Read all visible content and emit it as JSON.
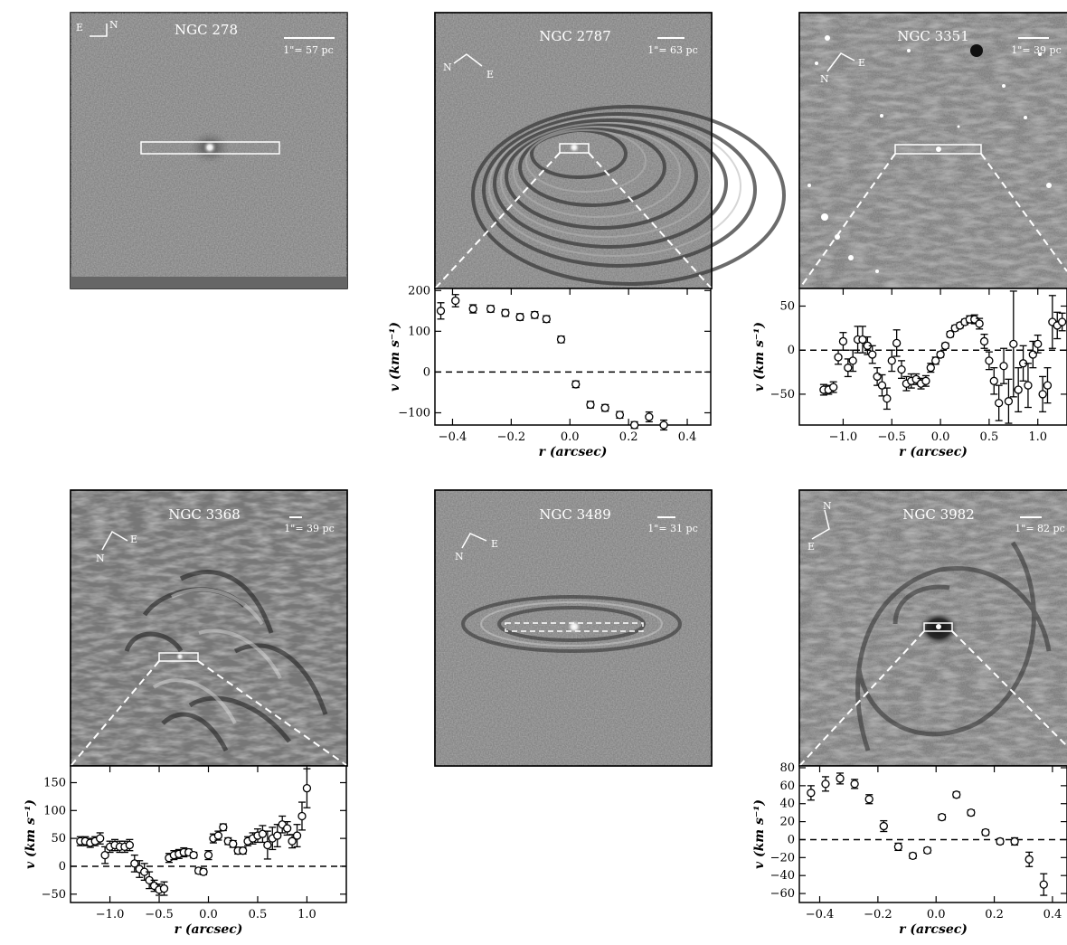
{
  "figure": {
    "panels": [
      {
        "galaxy": "NGC 278",
        "scale_label": "1\"= 57 pc",
        "compass": [
          "N",
          "E"
        ]
      },
      {
        "galaxy": "NGC 2787",
        "scale_label": "1\"= 63 pc",
        "compass": [
          "N",
          "E"
        ]
      },
      {
        "galaxy": "NGC 3351",
        "scale_label": "1\"= 39 pc",
        "compass": [
          "N",
          "E"
        ]
      },
      {
        "galaxy": "NGC 3368",
        "scale_label": "1\"= 39 pc",
        "compass": [
          "N",
          "E"
        ]
      },
      {
        "galaxy": "NGC 3489",
        "scale_label": "1\"= 31 pc",
        "compass": [
          "N",
          "E"
        ]
      },
      {
        "galaxy": "NGC 3982",
        "scale_label": "1\"= 82 pc",
        "compass": [
          "N",
          "E"
        ]
      }
    ]
  },
  "chart_data": [
    {
      "type": "scatter",
      "galaxy": "NGC 2787",
      "xlabel": "r (arcsec)",
      "ylabel": "v (km s⁻¹)",
      "xlim": [
        -0.46,
        0.48
      ],
      "ylim": [
        -130,
        205
      ],
      "xticks": [
        -0.4,
        -0.2,
        0.0,
        0.2,
        0.4
      ],
      "xtick_labels": [
        "−0.4",
        "−0.2",
        "0.0",
        "0.2",
        "0.4"
      ],
      "yticks": [
        -100,
        0,
        100,
        200
      ],
      "ytick_labels": [
        "−100",
        "0",
        "100",
        "200"
      ],
      "reference_line": 0,
      "x": [
        -0.44,
        -0.39,
        -0.33,
        -0.27,
        -0.22,
        -0.17,
        -0.12,
        -0.08,
        -0.03,
        0.02,
        0.07,
        0.12,
        0.17,
        0.22,
        0.27,
        0.32
      ],
      "y": [
        150,
        175,
        155,
        155,
        145,
        135,
        140,
        130,
        80,
        -30,
        -80,
        -88,
        -105,
        -130,
        -110,
        -130
      ],
      "yerr": [
        20,
        15,
        10,
        8,
        8,
        8,
        8,
        8,
        8,
        8,
        8,
        8,
        8,
        8,
        12,
        12
      ]
    },
    {
      "type": "scatter",
      "galaxy": "NGC 3351",
      "xlabel": "r (arcsec)",
      "ylabel": "v (km s⁻¹)",
      "xlim": [
        -1.45,
        1.3
      ],
      "ylim": [
        -85,
        70
      ],
      "xticks": [
        -1.0,
        -0.5,
        0.0,
        0.5,
        1.0
      ],
      "xtick_labels": [
        "−1.0",
        "−0.5",
        "0.0",
        "0.5",
        "1.0"
      ],
      "yticks": [
        -50,
        0,
        50
      ],
      "ytick_labels": [
        "−50",
        "0",
        "50"
      ],
      "reference_line": 0,
      "x": [
        -1.2,
        -1.15,
        -1.1,
        -1.05,
        -1.0,
        -0.95,
        -0.9,
        -0.85,
        -0.8,
        -0.75,
        -0.7,
        -0.65,
        -0.6,
        -0.55,
        -0.5,
        -0.45,
        -0.4,
        -0.35,
        -0.3,
        -0.25,
        -0.2,
        -0.15,
        -0.1,
        -0.05,
        0.0,
        0.05,
        0.1,
        0.15,
        0.2,
        0.25,
        0.3,
        0.35,
        0.4,
        0.45,
        0.5,
        0.55,
        0.6,
        0.65,
        0.7,
        0.75,
        0.8,
        0.85,
        0.9,
        0.95,
        1.0,
        1.05,
        1.1,
        1.15,
        1.2,
        1.25
      ],
      "y": [
        -45,
        -45,
        -42,
        -8,
        10,
        -20,
        -12,
        12,
        12,
        5,
        -5,
        -30,
        -40,
        -55,
        -12,
        8,
        -22,
        -38,
        -35,
        -33,
        -38,
        -35,
        -20,
        -12,
        -5,
        5,
        18,
        25,
        28,
        32,
        35,
        35,
        30,
        10,
        -12,
        -35,
        -60,
        -18,
        -58,
        7,
        -45,
        -15,
        -40,
        -5,
        7,
        -50,
        -40,
        32,
        28,
        32
      ],
      "yerr": [
        6,
        5,
        6,
        8,
        10,
        10,
        12,
        15,
        15,
        10,
        10,
        10,
        12,
        12,
        12,
        15,
        10,
        8,
        8,
        6,
        6,
        6,
        5,
        4,
        3,
        3,
        3,
        3,
        3,
        3,
        4,
        5,
        6,
        8,
        10,
        15,
        20,
        20,
        25,
        60,
        25,
        20,
        25,
        15,
        10,
        20,
        20,
        30,
        15,
        10
      ]
    },
    {
      "type": "scatter",
      "galaxy": "NGC 3368",
      "xlabel": "r (arcsec)",
      "ylabel": "v (km s⁻¹)",
      "xlim": [
        -1.4,
        1.4
      ],
      "ylim": [
        -65,
        180
      ],
      "xticks": [
        -1.0,
        -0.5,
        0.0,
        0.5,
        1.0
      ],
      "xtick_labels": [
        "−1.0",
        "−0.5",
        "0.0",
        "0.5",
        "1.0"
      ],
      "yticks": [
        -50,
        0,
        50,
        100,
        150
      ],
      "ytick_labels": [
        "−50",
        "0",
        "50",
        "100",
        "150"
      ],
      "reference_line": 0,
      "x": [
        -1.3,
        -1.25,
        -1.2,
        -1.15,
        -1.1,
        -1.05,
        -1.0,
        -0.95,
        -0.9,
        -0.85,
        -0.8,
        -0.75,
        -0.7,
        -0.65,
        -0.6,
        -0.55,
        -0.5,
        -0.45,
        -0.4,
        -0.35,
        -0.3,
        -0.25,
        -0.2,
        -0.15,
        -0.1,
        -0.05,
        0.0,
        0.05,
        0.1,
        0.15,
        0.2,
        0.25,
        0.3,
        0.35,
        0.4,
        0.45,
        0.5,
        0.55,
        0.6,
        0.65,
        0.7,
        0.75,
        0.8,
        0.85,
        0.9,
        0.95,
        1.0
      ],
      "y": [
        45,
        45,
        42,
        45,
        50,
        20,
        35,
        38,
        35,
        35,
        38,
        5,
        -5,
        -10,
        -25,
        -35,
        -42,
        -40,
        15,
        20,
        22,
        25,
        25,
        20,
        -8,
        -10,
        20,
        50,
        55,
        70,
        45,
        40,
        28,
        28,
        45,
        50,
        55,
        58,
        38,
        50,
        55,
        75,
        68,
        45,
        55,
        90,
        140
      ],
      "yerr": [
        8,
        8,
        8,
        8,
        10,
        15,
        10,
        10,
        10,
        10,
        10,
        15,
        15,
        15,
        15,
        10,
        10,
        12,
        8,
        8,
        8,
        8,
        6,
        5,
        5,
        5,
        8,
        8,
        8,
        6,
        6,
        6,
        6,
        6,
        8,
        10,
        12,
        15,
        25,
        20,
        20,
        15,
        12,
        12,
        20,
        25,
        35
      ]
    },
    {
      "type": "scatter",
      "galaxy": "NGC 3982",
      "xlabel": "r (arcsec)",
      "ylabel": "v (km s⁻¹)",
      "xlim": [
        -0.47,
        0.45
      ],
      "ylim": [
        -70,
        82
      ],
      "xticks": [
        -0.4,
        -0.2,
        0.0,
        0.2,
        0.4
      ],
      "xtick_labels": [
        "−0.4",
        "−0.2",
        "0.0",
        "0.2",
        "0.4"
      ],
      "yticks": [
        -60,
        -40,
        -20,
        0,
        20,
        40,
        60,
        80
      ],
      "ytick_labels": [
        "−60",
        "−40",
        "−20",
        "0",
        "20",
        "40",
        "60",
        "80"
      ],
      "reference_line": 0,
      "x": [
        -0.43,
        -0.38,
        -0.33,
        -0.28,
        -0.23,
        -0.18,
        -0.13,
        -0.08,
        -0.03,
        0.02,
        0.07,
        0.12,
        0.17,
        0.22,
        0.27,
        0.32,
        0.37
      ],
      "y": [
        52,
        62,
        68,
        62,
        45,
        15,
        -8,
        -18,
        -12,
        25,
        50,
        30,
        8,
        -2,
        -2,
        -22,
        -50
      ],
      "yerr": [
        8,
        8,
        6,
        5,
        5,
        6,
        4,
        3,
        3,
        3,
        3,
        3,
        3,
        3,
        4,
        8,
        12
      ]
    }
  ]
}
